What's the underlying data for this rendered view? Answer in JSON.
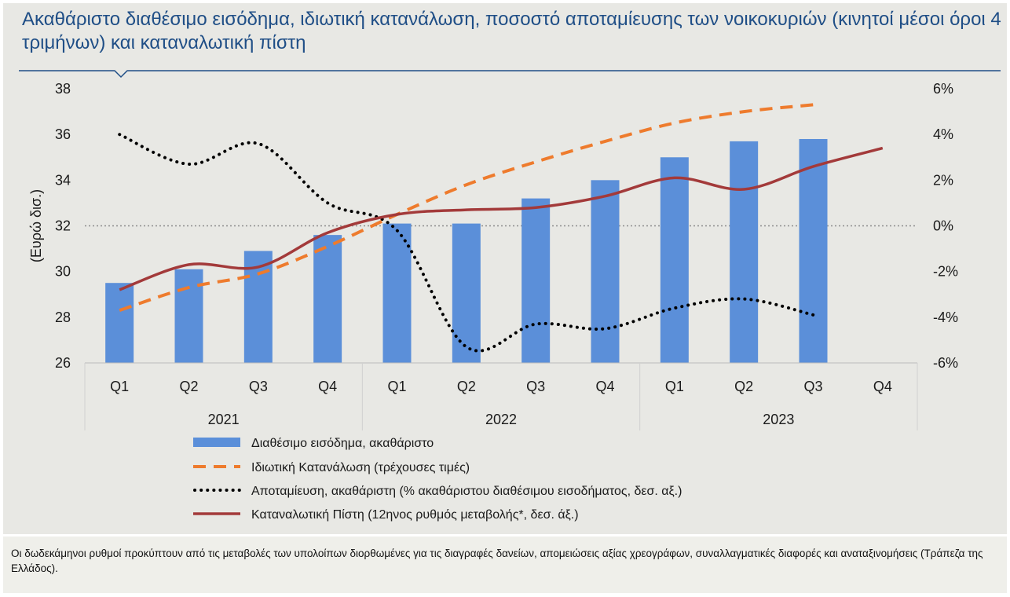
{
  "title": "Ακαθάριστο διαθέσιμο εισόδημα, ιδιωτική κατανάλωση, ποσοστό αποταμίευσης των νοικοκυριών (κινητοί μέσοι όροι 4 τριμήνων) και καταναλωτική πίστη",
  "footnote": "Οι δωδεκάμηνοι ρυθμοί προκύπτουν από τις μεταβολές των υπολοίπων διορθωμένες για τις διαγραφές δανείων, απομειώσεις αξίας χρεογράφων, συναλλαγματικές διαφορές και αναταξινομήσεις (Τράπεζα της Ελλάδος).",
  "colors": {
    "title": "#1f4e86",
    "bars": "#5b8fd9",
    "consumption": "#ee7b2d",
    "saving": "#000000",
    "credit": "#a33a3a",
    "zero_line": "#8c8c8c"
  },
  "chart_data": {
    "type": "bar+line",
    "categories": [
      "Q1",
      "Q2",
      "Q3",
      "Q4",
      "Q1",
      "Q2",
      "Q3",
      "Q4",
      "Q1",
      "Q2",
      "Q3",
      "Q4"
    ],
    "years": [
      "2021",
      "2022",
      "2023"
    ],
    "ylabel": "(Ευρώ δισ.)",
    "ylim": [
      26,
      38
    ],
    "y_ticks": [
      "26",
      "28",
      "30",
      "32",
      "34",
      "36",
      "38"
    ],
    "y2lim": [
      -6,
      6
    ],
    "y2_ticks": [
      "-6%",
      "-4%",
      "-2%",
      "0%",
      "2%",
      "4%",
      "6%"
    ],
    "zero_line_right_axis": 0,
    "legend_position": "bottom",
    "series": [
      {
        "name": "Διαθέσιμο εισόδημα, ακαθάριστο",
        "type": "bar",
        "axis": "left",
        "values": [
          29.5,
          30.1,
          30.9,
          31.6,
          32.1,
          32.1,
          33.2,
          34.0,
          35.0,
          35.7,
          35.8,
          null
        ]
      },
      {
        "name": "Ιδιωτική Κατανάλωση (τρέχουσες τιμές)",
        "type": "line",
        "style": "dashed",
        "axis": "left",
        "values": [
          28.3,
          29.3,
          29.9,
          31.1,
          32.5,
          33.8,
          34.8,
          35.7,
          36.5,
          37.0,
          37.3,
          null
        ]
      },
      {
        "name": "Αποταμίευση, ακαθάριστη (% ακαθάριστου διαθέσιμου εισοδήματος, δεσ. αξ.)",
        "type": "line",
        "style": "dotted",
        "axis": "right",
        "values": [
          4.0,
          2.7,
          3.6,
          1.0,
          -0.2,
          -5.3,
          -4.3,
          -4.5,
          -3.6,
          -3.2,
          -3.9,
          null
        ]
      },
      {
        "name": "Καταναλωτική Πίστη (12ηνος ρυθμός μεταβολής*, δεσ. άξ.)",
        "type": "line",
        "style": "solid",
        "axis": "right",
        "values": [
          -2.8,
          -1.7,
          -1.8,
          -0.3,
          0.5,
          0.7,
          0.8,
          1.3,
          2.1,
          1.6,
          2.6,
          3.4
        ]
      }
    ]
  },
  "legend": [
    "Διαθέσιμο εισόδημα, ακαθάριστο",
    "Ιδιωτική Κατανάλωση (τρέχουσες τιμές)",
    "Αποταμίευση, ακαθάριστη (% ακαθάριστου διαθέσιμου εισοδήματος, δεσ. αξ.)",
    "Καταναλωτική Πίστη (12ηνος ρυθμός μεταβολής*, δεσ. άξ.)"
  ]
}
